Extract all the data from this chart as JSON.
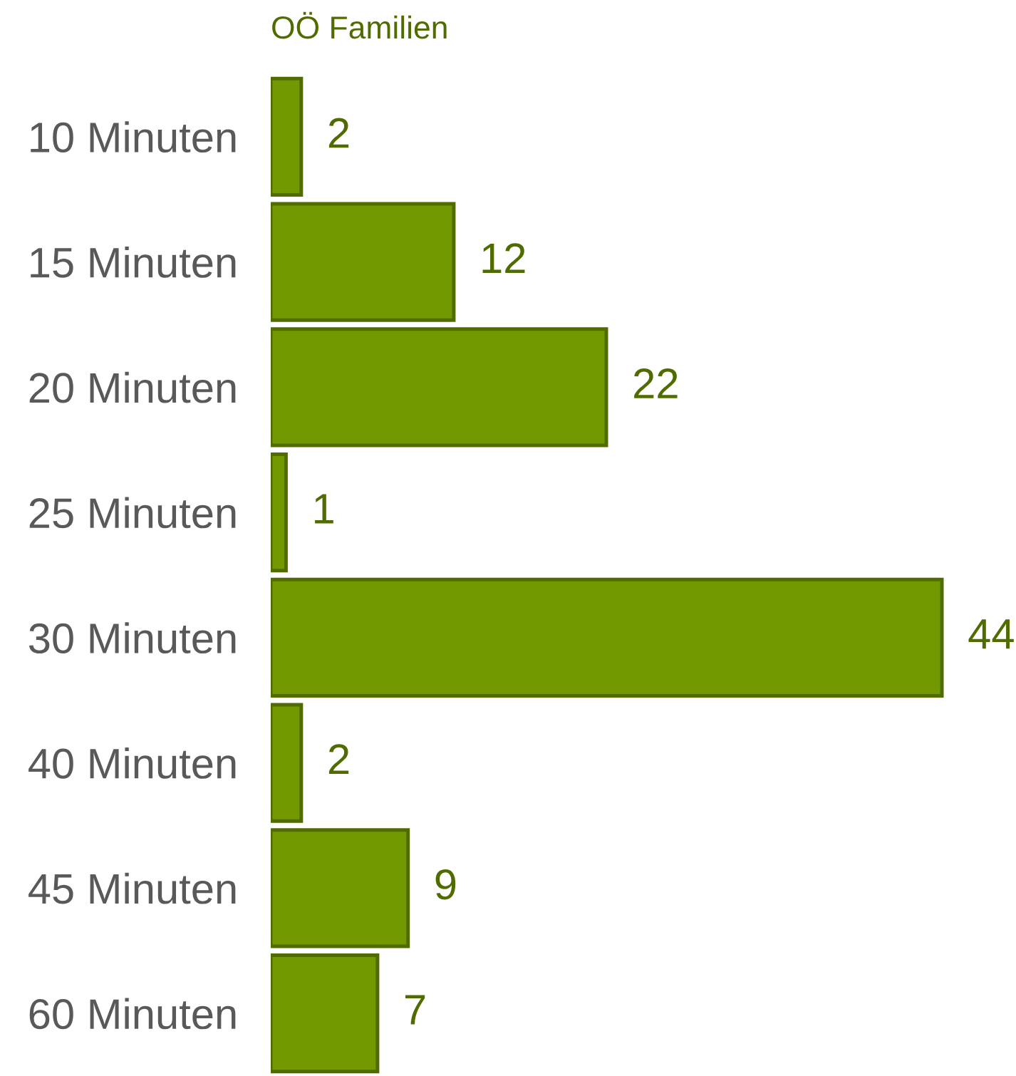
{
  "chart_data": {
    "type": "bar",
    "orientation": "horizontal",
    "title": "OÖ Familien",
    "categories": [
      "10 Minuten",
      "15 Minuten",
      "20 Minuten",
      "25 Minuten",
      "30 Minuten",
      "40 Minuten",
      "45 Minuten",
      "60 Minuten"
    ],
    "values": [
      2,
      12,
      22,
      1,
      44,
      2,
      9,
      7
    ],
    "color": "#729a00",
    "data_labels": true
  }
}
